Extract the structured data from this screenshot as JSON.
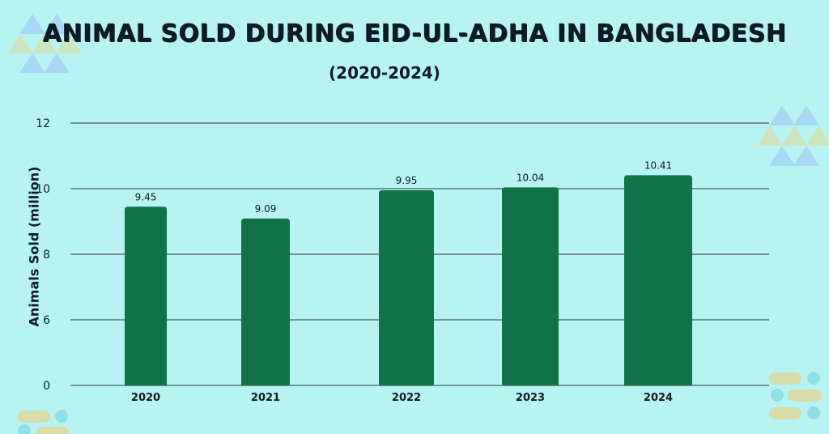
{
  "header": {
    "title": "ANIMAL SOLD DURING EID-UL-ADHA IN BANGLADESH",
    "subtitle": "(2020-2024)"
  },
  "chart_data": {
    "type": "bar",
    "title": "ANIMAL SOLD DURING EID-UL-ADHA IN BANGLADESH",
    "subtitle": "(2020-2024)",
    "xlabel": "",
    "ylabel": "Animals Sold (million)",
    "categories": [
      "2020",
      "2021",
      "2022",
      "2023",
      "2024"
    ],
    "values": [
      9.45,
      9.09,
      9.95,
      10.04,
      10.41
    ],
    "data_labels": [
      "9.45",
      "9.09",
      "9.95",
      "10.04",
      "10.41"
    ],
    "y_ticks": [
      "0",
      "6",
      "8",
      "10",
      "12"
    ],
    "ylim": [
      0,
      12
    ],
    "grid": true,
    "legend": "none",
    "colors": {
      "bar": "#10734a",
      "background": "#b7f3f3",
      "grid": "#333333",
      "text": "#0d1b24"
    }
  },
  "decorations": {
    "colors": {
      "triangle_blue": "#a9d8f5",
      "triangle_green": "#cfe5c0",
      "pill_tan": "#d8dca8",
      "dot_teal": "#8fe0e6"
    }
  }
}
